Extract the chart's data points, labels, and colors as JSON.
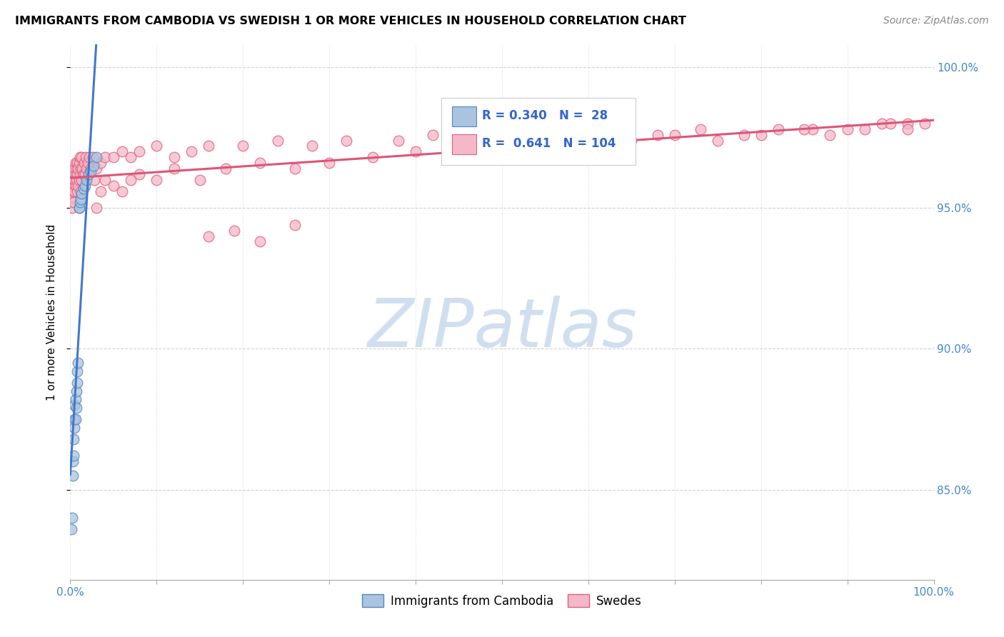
{
  "title": "IMMIGRANTS FROM CAMBODIA VS SWEDISH 1 OR MORE VEHICLES IN HOUSEHOLD CORRELATION CHART",
  "source": "Source: ZipAtlas.com",
  "ylabel": "1 or more Vehicles in Household",
  "ytick_vals": [
    0.85,
    0.9,
    0.95,
    1.0
  ],
  "ytick_labels": [
    "85.0%",
    "90.0%",
    "95.0%",
    "100.0%"
  ],
  "xlim": [
    0.0,
    1.0
  ],
  "ylim": [
    0.818,
    1.008
  ],
  "blue_color": "#a8c4e0",
  "blue_edge_color": "#5588bb",
  "pink_color": "#f4b8c8",
  "pink_edge_color": "#e06080",
  "blue_line_color": "#4477cc",
  "pink_line_color": "#dd5577",
  "watermark_color": "#d0dff0",
  "legend_r1": "R = 0.340",
  "legend_n1": "N =  28",
  "legend_r2": "R =  0.641",
  "legend_n2": "N = 104",
  "blue_x": [
    0.001,
    0.002,
    0.003,
    0.003,
    0.004,
    0.004,
    0.005,
    0.005,
    0.005,
    0.006,
    0.006,
    0.007,
    0.007,
    0.008,
    0.008,
    0.009,
    0.01,
    0.01,
    0.011,
    0.012,
    0.013,
    0.015,
    0.017,
    0.019,
    0.021,
    0.024,
    0.027,
    0.03
  ],
  "blue_y": [
    0.836,
    0.84,
    0.855,
    0.86,
    0.862,
    0.868,
    0.872,
    0.875,
    0.88,
    0.875,
    0.882,
    0.879,
    0.885,
    0.888,
    0.892,
    0.895,
    0.95,
    0.95,
    0.952,
    0.953,
    0.955,
    0.957,
    0.958,
    0.96,
    0.962,
    0.963,
    0.965,
    0.968
  ],
  "pink_x": [
    0.001,
    0.001,
    0.002,
    0.002,
    0.003,
    0.003,
    0.004,
    0.004,
    0.004,
    0.005,
    0.005,
    0.005,
    0.006,
    0.006,
    0.006,
    0.007,
    0.007,
    0.008,
    0.008,
    0.008,
    0.009,
    0.009,
    0.01,
    0.01,
    0.011,
    0.011,
    0.012,
    0.012,
    0.013,
    0.013,
    0.014,
    0.015,
    0.016,
    0.017,
    0.018,
    0.019,
    0.02,
    0.022,
    0.024,
    0.026,
    0.028,
    0.03,
    0.035,
    0.04,
    0.05,
    0.06,
    0.07,
    0.08,
    0.1,
    0.12,
    0.14,
    0.16,
    0.2,
    0.24,
    0.28,
    0.32,
    0.38,
    0.42,
    0.48,
    0.53,
    0.58,
    0.63,
    0.68,
    0.73,
    0.78,
    0.82,
    0.86,
    0.9,
    0.94,
    0.97,
    0.03,
    0.035,
    0.04,
    0.05,
    0.06,
    0.07,
    0.08,
    0.1,
    0.12,
    0.15,
    0.18,
    0.22,
    0.26,
    0.3,
    0.35,
    0.4,
    0.45,
    0.5,
    0.55,
    0.6,
    0.65,
    0.7,
    0.75,
    0.8,
    0.85,
    0.88,
    0.92,
    0.95,
    0.97,
    0.99,
    0.16,
    0.19,
    0.22,
    0.26
  ],
  "pink_y": [
    0.952,
    0.955,
    0.95,
    0.956,
    0.954,
    0.958,
    0.952,
    0.956,
    0.96,
    0.956,
    0.96,
    0.964,
    0.958,
    0.962,
    0.966,
    0.96,
    0.964,
    0.956,
    0.962,
    0.966,
    0.958,
    0.964,
    0.96,
    0.966,
    0.962,
    0.968,
    0.956,
    0.964,
    0.96,
    0.968,
    0.964,
    0.962,
    0.966,
    0.962,
    0.968,
    0.964,
    0.966,
    0.968,
    0.964,
    0.968,
    0.96,
    0.964,
    0.966,
    0.968,
    0.968,
    0.97,
    0.968,
    0.97,
    0.972,
    0.968,
    0.97,
    0.972,
    0.972,
    0.974,
    0.972,
    0.974,
    0.974,
    0.976,
    0.976,
    0.976,
    0.976,
    0.978,
    0.976,
    0.978,
    0.976,
    0.978,
    0.978,
    0.978,
    0.98,
    0.98,
    0.95,
    0.956,
    0.96,
    0.958,
    0.956,
    0.96,
    0.962,
    0.96,
    0.964,
    0.96,
    0.964,
    0.966,
    0.964,
    0.966,
    0.968,
    0.97,
    0.97,
    0.972,
    0.972,
    0.974,
    0.974,
    0.976,
    0.974,
    0.976,
    0.978,
    0.976,
    0.978,
    0.98,
    0.978,
    0.98,
    0.94,
    0.942,
    0.938,
    0.944
  ]
}
